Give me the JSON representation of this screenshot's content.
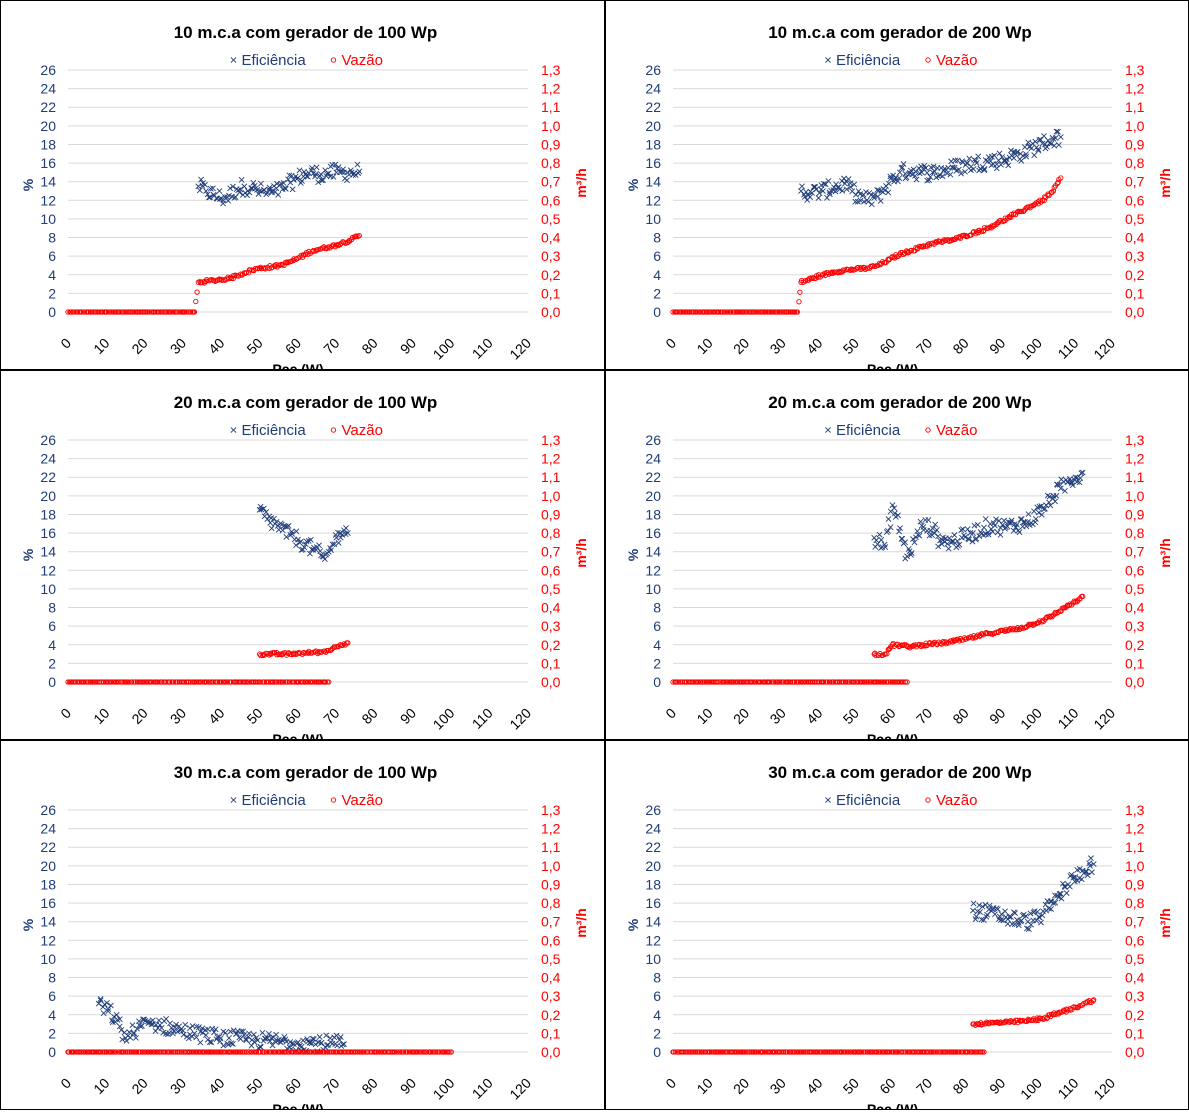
{
  "figure": {
    "colors": {
      "efficiency": "#1f3d7a",
      "flow": "#ff0000",
      "grid": "#d9d9d9",
      "axis_text": "#000000"
    },
    "shared": {
      "xlabel": "Pcc (W)",
      "ylabel_left": "%",
      "ylabel_right": "m³/h",
      "legend": [
        "Eficiência",
        "Vazão"
      ],
      "x_ticks": [
        "0",
        "10",
        "20",
        "30",
        "40",
        "50",
        "60",
        "70",
        "80",
        "90",
        "100",
        "110",
        "120"
      ],
      "y_left_ticks": [
        "0",
        "2",
        "4",
        "6",
        "8",
        "10",
        "12",
        "14",
        "16",
        "18",
        "20",
        "22",
        "24",
        "26"
      ],
      "y_right_ticks": [
        "0,0",
        "0,1",
        "0,2",
        "0,3",
        "0,4",
        "0,5",
        "0,6",
        "0,7",
        "0,8",
        "0,9",
        "1,0",
        "1,1",
        "1,2",
        "1,3"
      ]
    }
  },
  "chart_data": [
    {
      "type": "scatter",
      "title": "10 m.c.a com gerador de 100 Wp",
      "xlabel": "Pcc (W)",
      "ylabel": "%",
      "ylabel_right": "m³/h",
      "xlim": [
        0,
        120
      ],
      "ylim": [
        0,
        26
      ],
      "ylim_right": [
        0,
        1.3
      ],
      "grid": true,
      "legend_position": "top",
      "series": [
        {
          "name": "Eficiência",
          "axis": "left",
          "x": [
            34,
            36,
            38,
            40,
            42,
            44,
            46,
            48,
            50,
            52,
            54,
            56,
            58,
            60,
            62,
            64,
            66,
            68,
            70,
            72,
            74,
            76
          ],
          "y": [
            13.5,
            13.0,
            12.6,
            12.2,
            12.5,
            13.2,
            13.5,
            13.3,
            13.0,
            12.8,
            12.9,
            13.2,
            13.9,
            14.4,
            14.8,
            14.9,
            14.8,
            14.9,
            15.0,
            15.0,
            15.0,
            15.1
          ]
        },
        {
          "name": "Vazão",
          "axis": "right",
          "x": [
            0,
            5,
            10,
            15,
            20,
            25,
            30,
            33,
            34,
            36,
            38,
            40,
            42,
            44,
            46,
            48,
            50,
            52,
            54,
            56,
            58,
            60,
            62,
            64,
            66,
            68,
            70,
            72,
            74,
            76
          ],
          "y": [
            0,
            0,
            0,
            0,
            0,
            0,
            0,
            0,
            0.16,
            0.165,
            0.17,
            0.175,
            0.18,
            0.195,
            0.21,
            0.225,
            0.235,
            0.24,
            0.245,
            0.255,
            0.27,
            0.29,
            0.31,
            0.33,
            0.34,
            0.35,
            0.36,
            0.375,
            0.39,
            0.41
          ]
        }
      ]
    },
    {
      "type": "scatter",
      "title": "10 m.c.a com gerador de 200 Wp",
      "xlabel": "Pcc (W)",
      "ylabel": "%",
      "ylabel_right": "m³/h",
      "xlim": [
        0,
        120
      ],
      "ylim": [
        0,
        26
      ],
      "ylim_right": [
        0,
        1.3
      ],
      "grid": true,
      "legend_position": "top",
      "series": [
        {
          "name": "Eficiência",
          "axis": "left",
          "x": [
            35,
            38,
            41,
            44,
            47,
            50,
            53,
            56,
            59,
            62,
            65,
            68,
            71,
            74,
            77,
            80,
            83,
            86,
            89,
            92,
            95,
            98,
            101,
            104,
            106
          ],
          "y": [
            13.0,
            12.8,
            13.0,
            13.4,
            13.8,
            12.6,
            12.0,
            12.4,
            13.8,
            15.0,
            15.2,
            15.0,
            15.0,
            15.2,
            15.5,
            15.8,
            16.0,
            16.2,
            16.3,
            16.6,
            17.0,
            17.6,
            18.1,
            18.6,
            18.8
          ]
        },
        {
          "name": "Vazão",
          "axis": "right",
          "x": [
            0,
            5,
            10,
            15,
            20,
            25,
            30,
            34,
            35,
            38,
            41,
            44,
            47,
            50,
            53,
            56,
            59,
            62,
            65,
            68,
            71,
            74,
            77,
            80,
            83,
            86,
            89,
            92,
            95,
            98,
            101,
            104,
            106
          ],
          "y": [
            0,
            0,
            0,
            0,
            0,
            0,
            0,
            0,
            0.16,
            0.18,
            0.2,
            0.215,
            0.225,
            0.23,
            0.235,
            0.25,
            0.28,
            0.31,
            0.33,
            0.35,
            0.37,
            0.38,
            0.39,
            0.41,
            0.43,
            0.45,
            0.48,
            0.51,
            0.54,
            0.57,
            0.6,
            0.65,
            0.72
          ]
        }
      ]
    },
    {
      "type": "scatter",
      "title": "20 m.c.a com gerador de 100 Wp",
      "xlabel": "Pcc (W)",
      "ylabel": "%",
      "ylabel_right": "m³/h",
      "xlim": [
        0,
        120
      ],
      "ylim": [
        0,
        26
      ],
      "ylim_right": [
        0,
        1.3
      ],
      "grid": true,
      "legend_position": "top",
      "series": [
        {
          "name": "Eficiência",
          "axis": "left",
          "x": [
            50,
            52,
            54,
            56,
            58,
            60,
            62,
            64,
            66,
            67,
            68,
            69,
            70,
            71,
            72,
            73
          ],
          "y": [
            18.5,
            17.5,
            17.0,
            16.3,
            15.8,
            15.3,
            14.8,
            14.2,
            13.6,
            13.2,
            14.0,
            14.8,
            15.5,
            16.0,
            16.3,
            16.0
          ]
        },
        {
          "name": "Vazão",
          "axis": "right",
          "x": [
            0,
            5,
            10,
            15,
            20,
            25,
            30,
            35,
            40,
            45,
            50,
            55,
            60,
            65,
            68,
            50,
            53,
            56,
            58,
            60,
            62,
            64,
            66,
            68,
            69,
            70,
            71,
            72,
            73
          ],
          "y": [
            0,
            0,
            0,
            0,
            0,
            0,
            0,
            0,
            0,
            0,
            0,
            0,
            0,
            0,
            0,
            0.15,
            0.15,
            0.15,
            0.15,
            0.155,
            0.155,
            0.16,
            0.16,
            0.17,
            0.18,
            0.19,
            0.2,
            0.205,
            0.21
          ]
        }
      ]
    },
    {
      "type": "scatter",
      "title": "20 m.c.a com gerador de 200 Wp",
      "xlabel": "Pcc (W)",
      "ylabel": "%",
      "ylabel_right": "m³/h",
      "xlim": [
        0,
        120
      ],
      "ylim": [
        0,
        26
      ],
      "ylim_right": [
        0,
        1.3
      ],
      "grid": true,
      "legend_position": "top",
      "series": [
        {
          "name": "Eficiência",
          "axis": "left",
          "x": [
            55,
            58,
            60,
            64,
            66,
            68,
            71,
            73,
            76,
            79,
            82,
            85,
            88,
            91,
            94,
            97,
            100,
            102,
            104,
            106,
            108,
            110,
            112
          ],
          "y": [
            15.5,
            14.5,
            19.0,
            13.5,
            15.0,
            16.8,
            16.5,
            15.2,
            15.0,
            15.5,
            16.0,
            16.6,
            16.8,
            16.6,
            16.9,
            17.2,
            18.2,
            19.0,
            20.0,
            20.8,
            21.5,
            22.0,
            22.5
          ]
        },
        {
          "name": "Vazão",
          "axis": "right",
          "x": [
            0,
            5,
            10,
            15,
            20,
            25,
            30,
            35,
            40,
            45,
            50,
            55,
            60,
            64,
            55,
            58,
            60,
            65,
            68,
            71,
            74,
            77,
            80,
            83,
            86,
            89,
            92,
            95,
            98,
            101,
            104,
            107,
            110,
            112
          ],
          "y": [
            0,
            0,
            0,
            0,
            0,
            0,
            0,
            0,
            0,
            0,
            0,
            0,
            0,
            0,
            0.15,
            0.15,
            0.2,
            0.19,
            0.2,
            0.205,
            0.21,
            0.22,
            0.23,
            0.245,
            0.26,
            0.27,
            0.28,
            0.29,
            0.31,
            0.33,
            0.36,
            0.4,
            0.43,
            0.46
          ]
        }
      ]
    },
    {
      "type": "scatter",
      "title": "30 m.c.a com gerador de 100 Wp",
      "xlabel": "Pcc (W)",
      "ylabel": "%",
      "ylabel_right": "m³/h",
      "xlim": [
        0,
        120
      ],
      "ylim": [
        0,
        26
      ],
      "ylim_right": [
        0,
        1.3
      ],
      "grid": true,
      "legend_position": "top",
      "series": [
        {
          "name": "Eficiência",
          "axis": "left",
          "x": [
            8,
            12,
            15,
            18,
            21,
            24,
            27,
            30,
            33,
            36,
            39,
            42,
            45,
            48,
            51,
            54,
            57,
            60,
            63,
            66,
            69,
            72
          ],
          "y": [
            5.2,
            3.8,
            1.5,
            2.5,
            3.1,
            2.9,
            2.6,
            2.3,
            2.0,
            1.8,
            1.6,
            1.5,
            1.4,
            1.3,
            1.2,
            1.15,
            1.1,
            1.05,
            1.0,
            0.95,
            0.9,
            0.85
          ]
        },
        {
          "name": "Vazão",
          "axis": "right",
          "x": [
            0,
            5,
            10,
            15,
            20,
            25,
            30,
            35,
            40,
            45,
            50,
            55,
            60,
            65,
            70,
            75,
            80,
            85,
            90,
            95,
            100
          ],
          "y": [
            0,
            0,
            0,
            0,
            0,
            0,
            0,
            0,
            0,
            0,
            0,
            0,
            0,
            0,
            0,
            0,
            0,
            0,
            0,
            0,
            0
          ]
        }
      ]
    },
    {
      "type": "scatter",
      "title": "30 m.c.a com gerador de 200 Wp",
      "xlabel": "Pcc (W)",
      "ylabel": "%",
      "ylabel_right": "m³/h",
      "xlim": [
        0,
        120
      ],
      "ylim": [
        0,
        26
      ],
      "ylim_right": [
        0,
        1.3
      ],
      "grid": true,
      "legend_position": "top",
      "series": [
        {
          "name": "Eficiência",
          "axis": "left",
          "x": [
            82,
            88,
            91,
            94,
            97,
            100,
            102,
            104,
            106,
            108,
            110,
            112,
            114,
            115
          ],
          "y": [
            15.2,
            14.8,
            14.5,
            14.2,
            14.0,
            14.5,
            15.2,
            16.0,
            17.0,
            18.0,
            18.8,
            19.5,
            20.0,
            20.2
          ]
        },
        {
          "name": "Vazão",
          "axis": "right",
          "x": [
            0,
            5,
            10,
            15,
            20,
            25,
            30,
            35,
            40,
            45,
            50,
            55,
            60,
            65,
            70,
            75,
            80,
            85,
            82,
            86,
            89,
            92,
            95,
            98,
            101,
            104,
            107,
            110,
            113,
            115
          ],
          "y": [
            0,
            0,
            0,
            0,
            0,
            0,
            0,
            0,
            0,
            0,
            0,
            0,
            0,
            0,
            0,
            0,
            0,
            0,
            0.15,
            0.155,
            0.158,
            0.16,
            0.165,
            0.17,
            0.18,
            0.2,
            0.22,
            0.24,
            0.265,
            0.28
          ]
        }
      ]
    }
  ]
}
